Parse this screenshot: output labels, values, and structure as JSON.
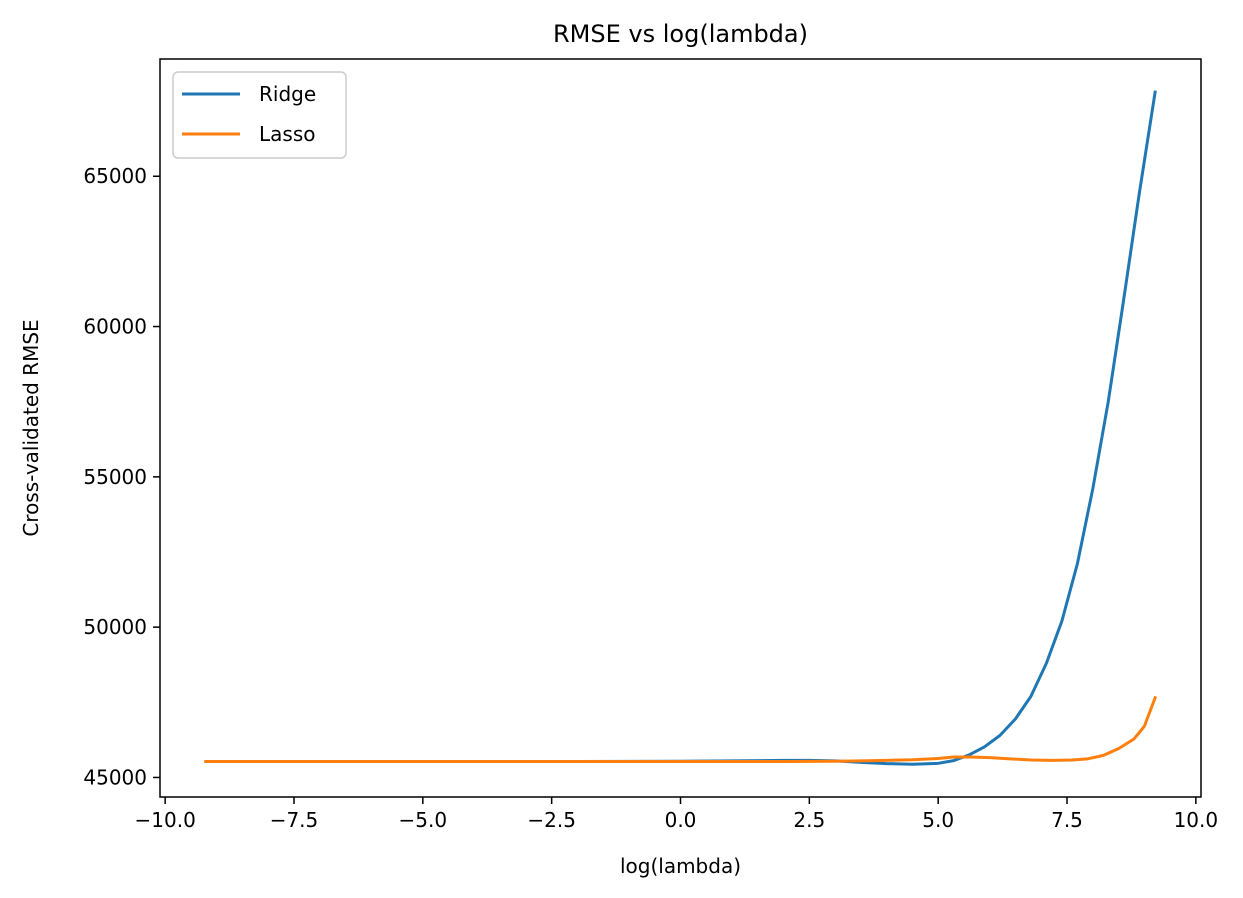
{
  "chart_data": {
    "type": "line",
    "title": "RMSE vs log(lambda)",
    "xlabel": "log(lambda)",
    "ylabel": "Cross-validated RMSE",
    "xlim": [
      -10.1,
      10.1
    ],
    "ylim": [
      44350,
      68900
    ],
    "xticks": [
      -10.0,
      -7.5,
      -5.0,
      -2.5,
      0.0,
      2.5,
      5.0,
      7.5,
      10.0
    ],
    "xtick_labels": [
      "−10.0",
      "−7.5",
      "−5.0",
      "−2.5",
      "0.0",
      "2.5",
      "5.0",
      "7.5",
      "10.0"
    ],
    "yticks": [
      45000,
      50000,
      55000,
      60000,
      65000
    ],
    "ytick_labels": [
      "45000",
      "50000",
      "55000",
      "60000",
      "65000"
    ],
    "grid": false,
    "legend_position": "top-left",
    "series": [
      {
        "name": "Ridge",
        "color": "#1f77b4",
        "x": [
          -9.21,
          -8.0,
          -6.0,
          -4.0,
          -2.0,
          0.0,
          1.0,
          2.0,
          2.5,
          3.0,
          3.5,
          4.0,
          4.5,
          5.0,
          5.3,
          5.6,
          5.9,
          6.2,
          6.5,
          6.8,
          7.1,
          7.4,
          7.7,
          8.0,
          8.3,
          8.6,
          8.9,
          9.21
        ],
        "y": [
          45530,
          45530,
          45530,
          45530,
          45530,
          45540,
          45550,
          45570,
          45570,
          45550,
          45500,
          45460,
          45440,
          45470,
          45560,
          45750,
          46020,
          46400,
          46950,
          47700,
          48800,
          50200,
          52100,
          54600,
          57500,
          60900,
          64400,
          67800
        ]
      },
      {
        "name": "Lasso",
        "color": "#ff7f0e",
        "x": [
          -9.21,
          -6.0,
          -3.0,
          0.0,
          2.0,
          3.0,
          3.5,
          4.0,
          4.5,
          5.0,
          5.3,
          5.6,
          6.0,
          6.4,
          6.8,
          7.2,
          7.6,
          7.9,
          8.2,
          8.5,
          8.8,
          9.0,
          9.21
        ],
        "y": [
          45530,
          45530,
          45530,
          45530,
          45530,
          45540,
          45550,
          45570,
          45590,
          45630,
          45680,
          45680,
          45660,
          45620,
          45580,
          45570,
          45580,
          45620,
          45730,
          45960,
          46280,
          46700,
          47650
        ]
      }
    ]
  }
}
